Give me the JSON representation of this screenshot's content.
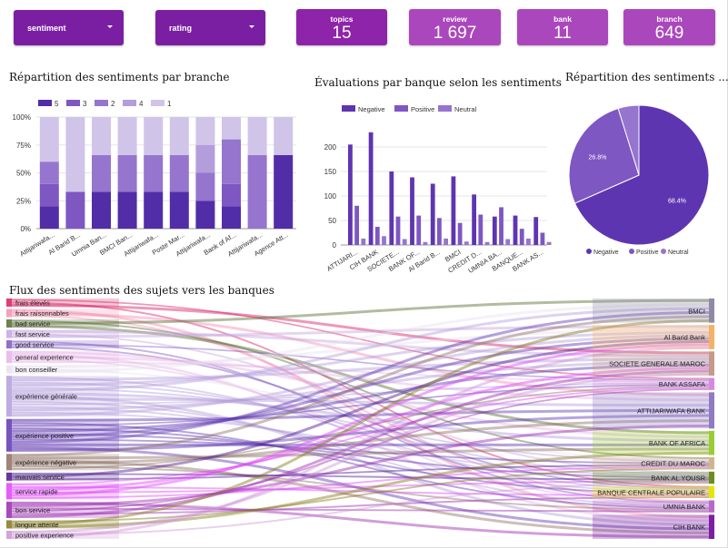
{
  "filters": [
    {
      "label": "sentiment"
    },
    {
      "label": "rating"
    }
  ],
  "kpis": [
    {
      "label": "topics",
      "value": "15"
    },
    {
      "label": "review",
      "value": "1 697"
    },
    {
      "label": "bank",
      "value": "11"
    },
    {
      "label": "branch",
      "value": "649"
    }
  ],
  "colors": {
    "filter_bg": "#7b1fa2",
    "kpi_dark": "#8e24aa",
    "kpi_light": "#ab47bc",
    "negative": "#5e35b1",
    "positive": "#7e57c2",
    "neutral": "#9575cd"
  },
  "chart_data": [
    {
      "type": "bar",
      "stacked": "percent",
      "title": "Répartition des sentiments par branche",
      "legend_position": "top",
      "categories": [
        "Attijariwafa...",
        "Al Barid B...",
        "Umnia Ban...",
        "BMCI Ban...",
        "Attijariwafa...",
        "Poste Mar...",
        "Attijariwafa...",
        "Bank of Af...",
        "Attijariwafa...",
        "Agence Att..."
      ],
      "yticks": [
        "0%",
        "25%",
        "50%",
        "75%",
        "100%"
      ],
      "ylim": [
        0,
        100
      ],
      "series": [
        {
          "name": "5",
          "color": "#512da8",
          "values": [
            20,
            0,
            33,
            33,
            33,
            33,
            25,
            20,
            0,
            66
          ]
        },
        {
          "name": "3",
          "color": "#7e57c2",
          "values": [
            20,
            33,
            0,
            0,
            0,
            0,
            0,
            20,
            0,
            0
          ]
        },
        {
          "name": "2",
          "color": "#9575cd",
          "values": [
            20,
            0,
            33,
            33,
            33,
            33,
            25,
            40,
            66,
            0
          ]
        },
        {
          "name": "4",
          "color": "#b39ddb",
          "values": [
            0,
            0,
            0,
            0,
            0,
            0,
            25,
            0,
            0,
            0
          ]
        },
        {
          "name": "1",
          "color": "#d1c4e9",
          "values": [
            40,
            67,
            34,
            34,
            34,
            34,
            25,
            20,
            34,
            34
          ]
        }
      ]
    },
    {
      "type": "bar",
      "title": "Évaluations par banque selon les sentiments",
      "legend_position": "top",
      "categories": [
        "ATTIJARI...",
        "CIH BANK",
        "SOCIETE...",
        "BANK OF...",
        "Al Barid B...",
        "BMCI",
        "CREDIT D...",
        "UMNIA BA...",
        "BANQUE...",
        "BANK AS..."
      ],
      "yticks": [
        "0",
        "50",
        "100",
        "150",
        "200"
      ],
      "ylim": [
        0,
        250
      ],
      "series": [
        {
          "name": "Negative",
          "color": "#5e35b1",
          "values": [
            205,
            230,
            150,
            138,
            125,
            140,
            103,
            58,
            60,
            57
          ]
        },
        {
          "name": "Positive",
          "color": "#7e57c2",
          "values": [
            80,
            37,
            58,
            60,
            55,
            45,
            62,
            77,
            33,
            25
          ]
        },
        {
          "name": "Neutral",
          "color": "#9575cd",
          "values": [
            13,
            18,
            12,
            6,
            13,
            7,
            6,
            12,
            13,
            6
          ]
        }
      ]
    },
    {
      "type": "pie",
      "title": "Répartition des sentiments ...",
      "legend_position": "bottom",
      "slices": [
        {
          "name": "Negative",
          "value": 68.4,
          "label": "68.4%",
          "color": "#5e35b1"
        },
        {
          "name": "Positive",
          "value": 26.8,
          "label": "26.8%",
          "color": "#7e57c2"
        },
        {
          "name": "Neutral",
          "value": 4.8,
          "label": "",
          "color": "#9575cd"
        }
      ]
    },
    {
      "type": "sankey",
      "title": "Flux des sentiments des sujets vers les banques",
      "sources": [
        {
          "name": "frais élevés",
          "color": "#d81b60",
          "weight": 1
        },
        {
          "name": "frais raisonnables",
          "color": "#f48fb1",
          "weight": 1
        },
        {
          "name": "bad service",
          "color": "#556b2f",
          "weight": 1
        },
        {
          "name": "fast service",
          "color": "#c5a3e0",
          "weight": 1
        },
        {
          "name": "good service",
          "color": "#7e57c2",
          "weight": 1
        },
        {
          "name": "general experience",
          "color": "#e6b3e6",
          "weight": 1.5
        },
        {
          "name": "bon conseiller",
          "color": "#e8e0f0",
          "weight": 1
        },
        {
          "name": "expérience générale",
          "color": "#b39ddb",
          "weight": 5
        },
        {
          "name": "expérience positive",
          "color": "#5e35b1",
          "weight": 4
        },
        {
          "name": "expérience négative",
          "color": "#8d6e63",
          "weight": 2
        },
        {
          "name": "mauvais service",
          "color": "#4a148c",
          "weight": 1
        },
        {
          "name": "service rapide",
          "color": "#e040fb",
          "weight": 2
        },
        {
          "name": "bon service",
          "color": "#9c27b0",
          "weight": 2
        },
        {
          "name": "longue attente",
          "color": "#827717",
          "weight": 1
        },
        {
          "name": "positive experience",
          "color": "#ce93d8",
          "weight": 1
        }
      ],
      "targets": [
        {
          "name": "BMCI",
          "color": "#8e8aa6",
          "weight": 2
        },
        {
          "name": "Al Barid Bank",
          "color": "#f4b266",
          "weight": 2
        },
        {
          "name": "SOCIETE GENERALE MAROC",
          "color": "#c49a8a",
          "weight": 2
        },
        {
          "name": "BANK ASSAFA",
          "color": "#d58adf",
          "weight": 1
        },
        {
          "name": "ATTIJARIWAFA BANK",
          "color": "#8e7cc3",
          "weight": 3
        },
        {
          "name": "BANK OF AFRICA",
          "color": "#9acd32",
          "weight": 2
        },
        {
          "name": "CREDIT DU MAROC",
          "color": "#d2b48c",
          "weight": 1
        },
        {
          "name": "BANK AL YOUSR",
          "color": "#6b8e23",
          "weight": 1
        },
        {
          "name": "BANQUE CENTRALE POPULAIRE",
          "color": "#e6e600",
          "weight": 1
        },
        {
          "name": "UMNIA BANK",
          "color": "#ba68c8",
          "weight": 1
        },
        {
          "name": "CIH BANK",
          "color": "#7b1fa2",
          "weight": 2
        }
      ]
    }
  ]
}
